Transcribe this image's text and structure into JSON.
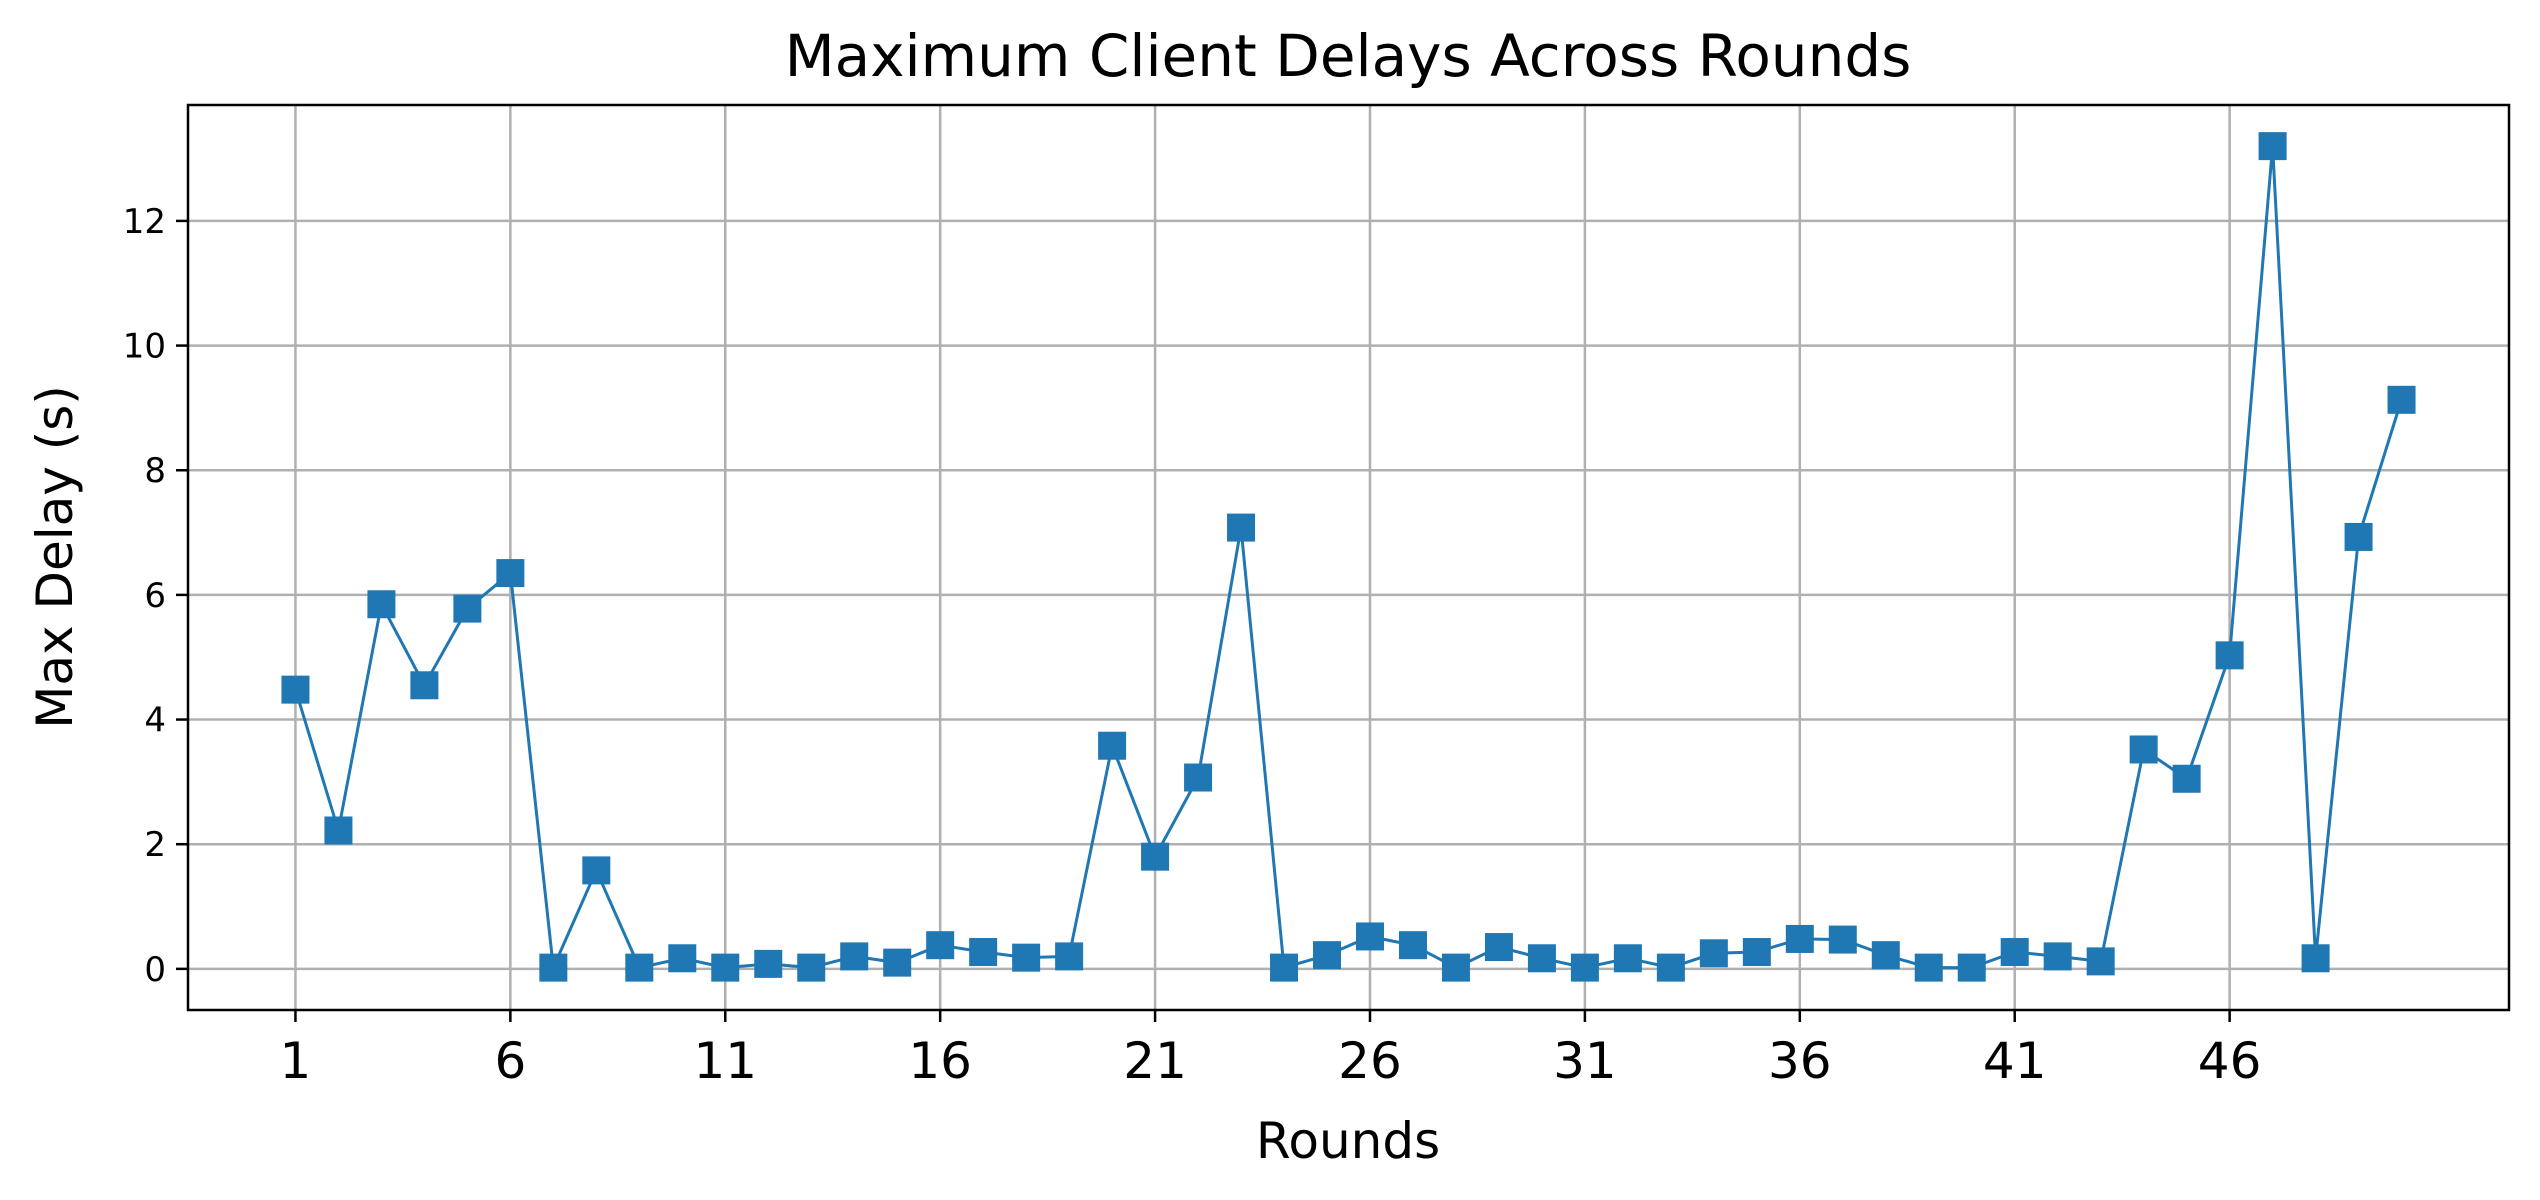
{
  "chart_data": {
    "type": "line",
    "title": "Maximum Client Delays Across Rounds",
    "xlabel": "Rounds",
    "ylabel": "Max Delay (s)",
    "marker": "square",
    "grid": true,
    "color": "#1f77b4",
    "x": [
      1,
      2,
      3,
      4,
      5,
      6,
      7,
      8,
      9,
      10,
      11,
      12,
      13,
      14,
      15,
      16,
      17,
      18,
      19,
      20,
      21,
      22,
      23,
      24,
      25,
      26,
      27,
      28,
      29,
      30,
      31,
      32,
      33,
      34,
      35,
      36,
      37,
      38,
      39,
      40,
      41,
      42,
      43,
      44,
      45,
      46,
      47,
      48,
      49,
      50
    ],
    "y": [
      4.48,
      2.22,
      5.85,
      4.55,
      5.78,
      6.35,
      0.02,
      1.58,
      0.02,
      0.17,
      0.02,
      0.08,
      0.02,
      0.2,
      0.1,
      0.38,
      0.27,
      0.18,
      0.2,
      3.58,
      1.8,
      3.07,
      7.08,
      0.02,
      0.22,
      0.52,
      0.38,
      0.02,
      0.35,
      0.17,
      0.02,
      0.17,
      0.02,
      0.25,
      0.27,
      0.48,
      0.47,
      0.22,
      0.02,
      0.02,
      0.27,
      0.2,
      0.12,
      3.52,
      3.05,
      5.03,
      13.2,
      0.17,
      6.93,
      9.13
    ],
    "xticks": [
      1,
      6,
      11,
      16,
      21,
      26,
      31,
      36,
      41,
      46
    ],
    "xtick_labels": [
      "1",
      "6",
      "11",
      "16",
      "21",
      "26",
      "31",
      "36",
      "41",
      "46"
    ],
    "yticks": [
      0,
      2,
      4,
      6,
      8,
      10,
      12
    ],
    "ytick_labels": [
      "0",
      "2",
      "4",
      "6",
      "8",
      "10",
      "12"
    ],
    "xlim": [
      -1.5,
      52.5
    ],
    "ylim": [
      -0.66,
      13.86
    ]
  }
}
